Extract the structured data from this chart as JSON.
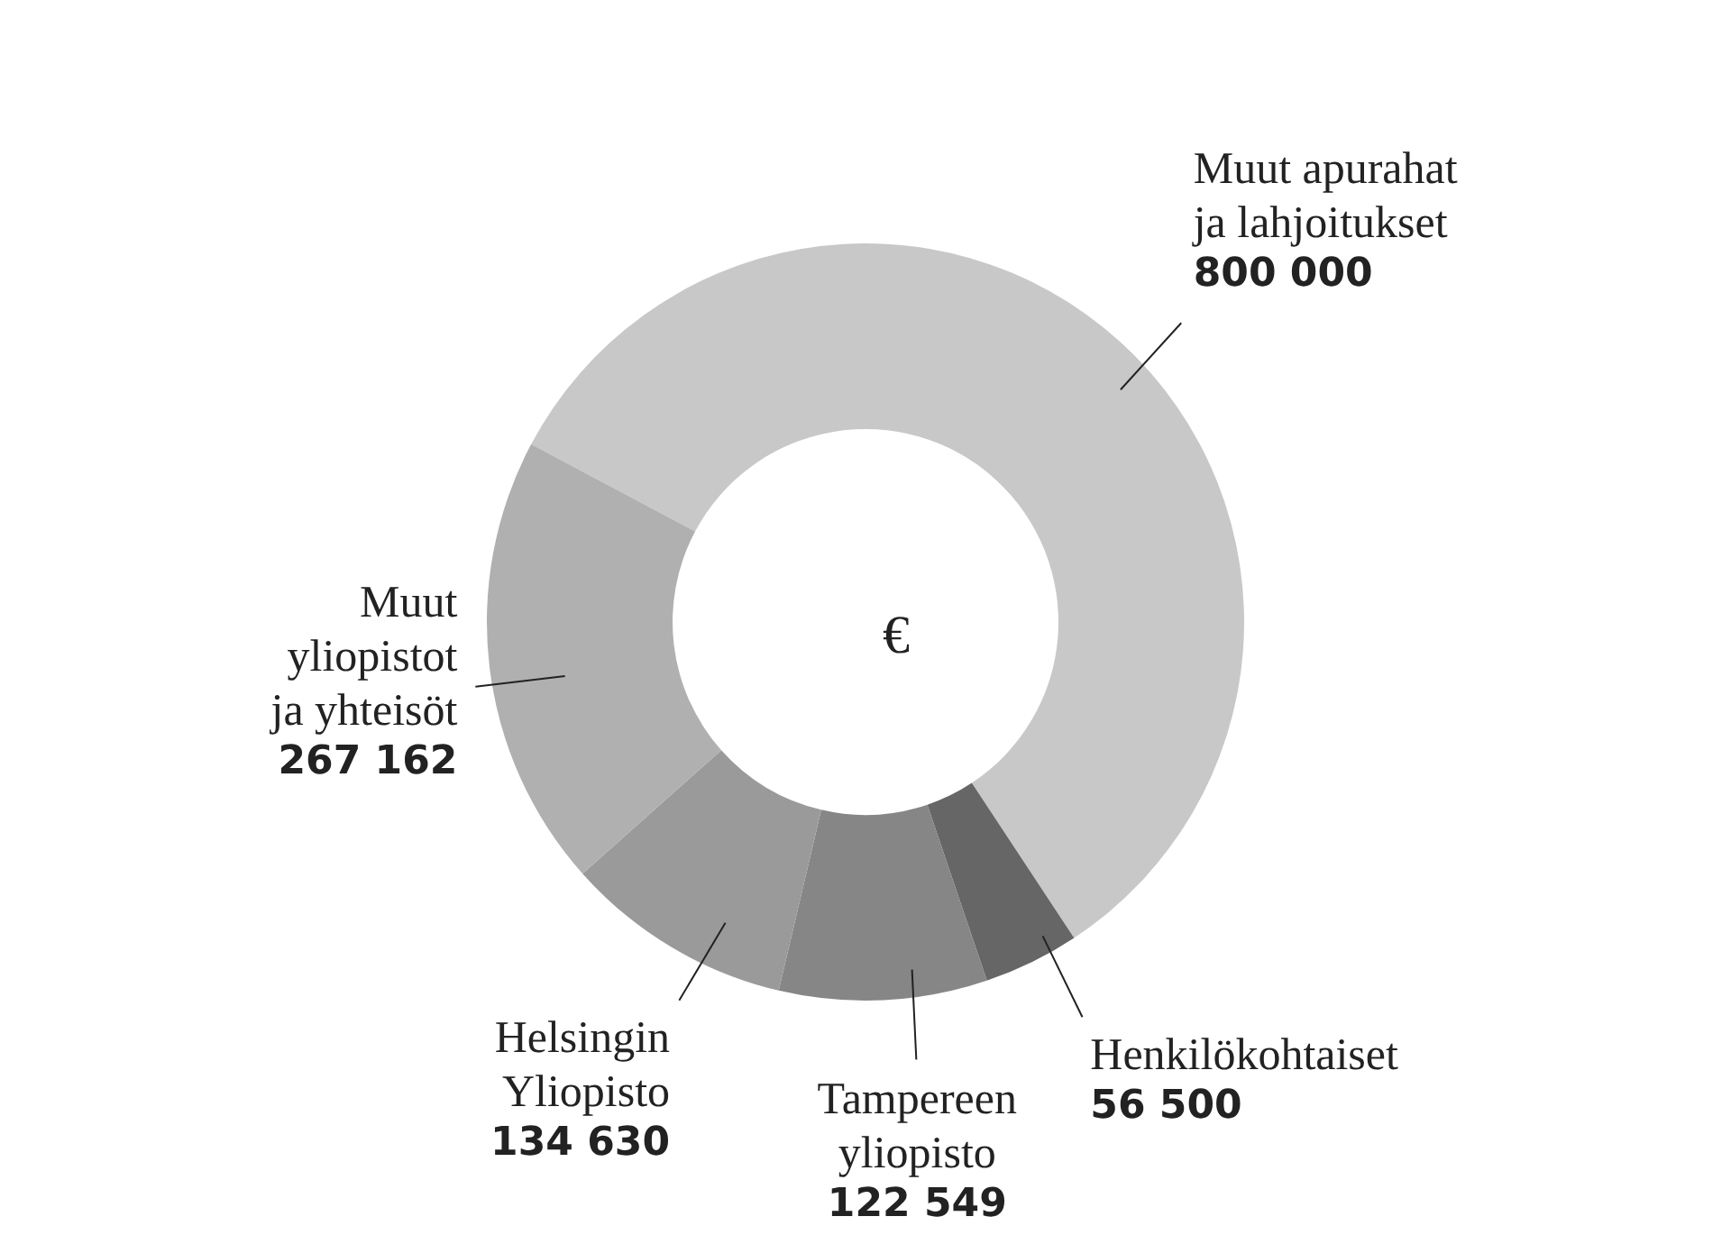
{
  "chart_data": {
    "type": "donut",
    "categories": [
      "Muut apurahat\nja lahjoitukset",
      "Henkilökohtaiset",
      "Tampereen\nyliopisto",
      "Helsingin\nYliopisto",
      "Muut\nyliopistot\nja yhteisöt"
    ],
    "values": [
      800000,
      56500,
      122549,
      134630,
      267162
    ],
    "value_labels": [
      "800 000",
      "56 500",
      "122 549",
      "134 630",
      "267 162"
    ],
    "colors": [
      "#c8c8c8",
      "#666666",
      "#868686",
      "#9a9a9a",
      "#b0b0b0"
    ],
    "annotations": [
      "€"
    ]
  }
}
